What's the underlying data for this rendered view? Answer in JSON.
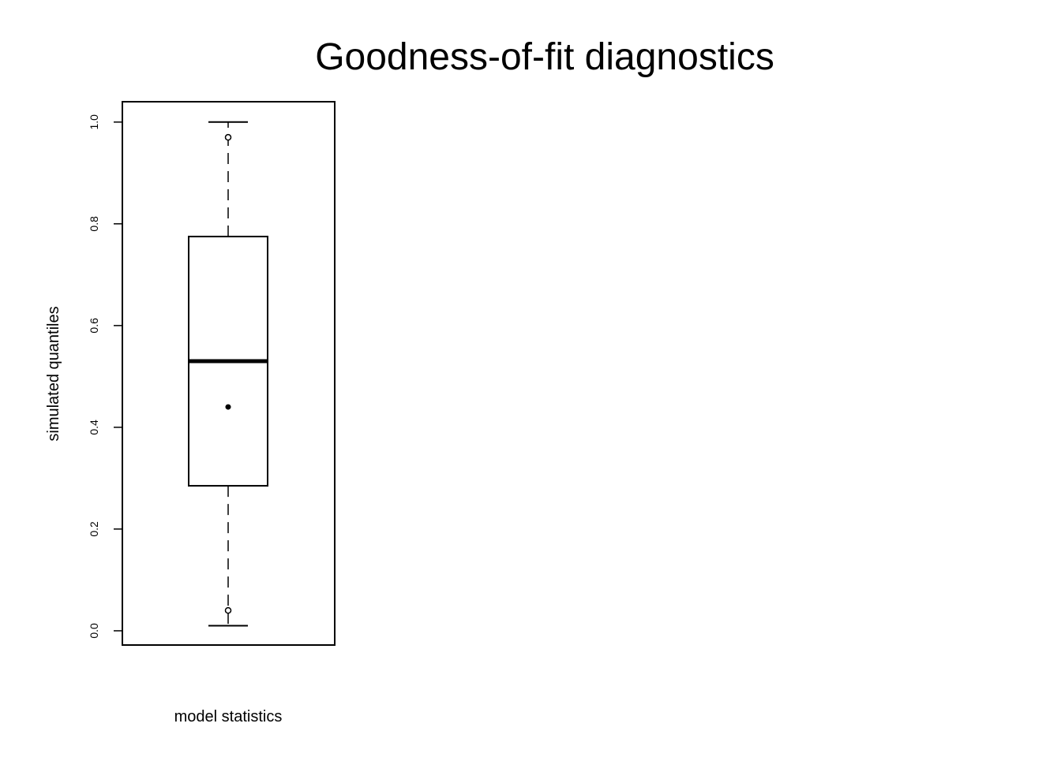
{
  "chart_data": {
    "type": "boxplot",
    "title": "Goodness-of-fit diagnostics",
    "xlabel": "model statistics",
    "ylabel": "simulated quantiles",
    "ylim": [
      -0.028,
      1.04
    ],
    "yticks": [
      0.0,
      0.2,
      0.4,
      0.6,
      0.8,
      1.0
    ],
    "ytick_labels": [
      "0.0",
      "0.2",
      "0.4",
      "0.6",
      "0.8",
      "1.0"
    ],
    "box": {
      "whisker_low": 0.01,
      "q1": 0.285,
      "median": 0.53,
      "q3": 0.775,
      "whisker_high": 1.0
    },
    "open_points": [
      0.97,
      0.04
    ],
    "filled_points": [
      0.44
    ],
    "colors": {
      "line": "#000000",
      "background": "#ffffff"
    }
  }
}
